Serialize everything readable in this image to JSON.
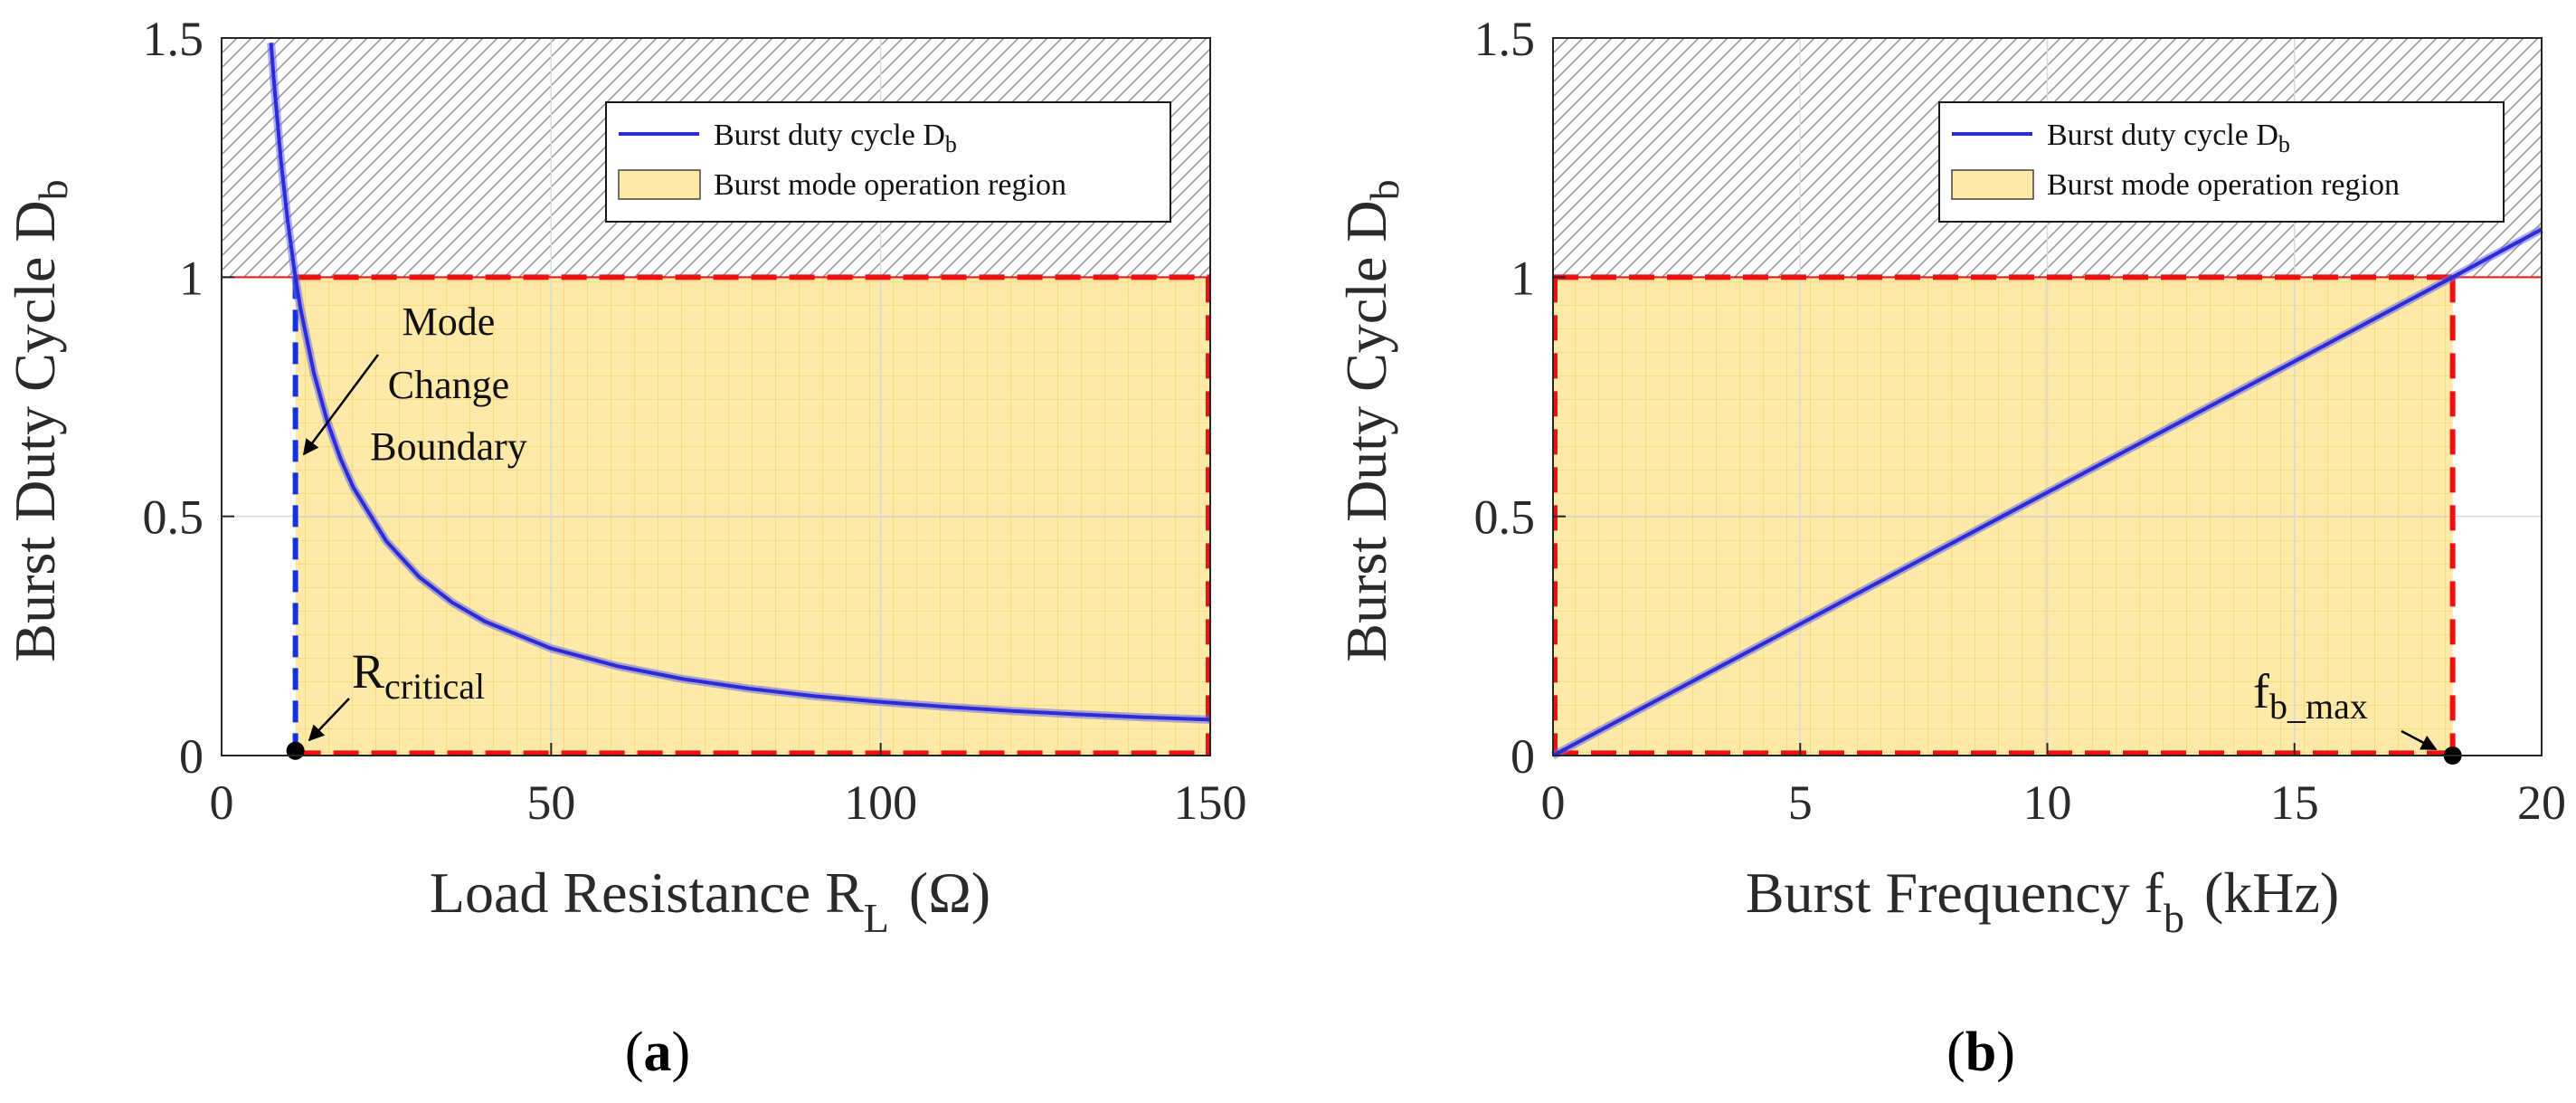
{
  "colors": {
    "curve": "#2b2bd9",
    "curve_glow": "#6a6ae6",
    "region_fill": "#fde9a8",
    "region_grid": "#f5d26b",
    "boundary_red": "#ee1111",
    "boundary_blue": "#1530e0",
    "hatch": "#9a9a9a"
  },
  "legend": {
    "line_label_main": "Burst duty cycle D",
    "line_label_sub": "b",
    "region_label": "Burst mode operation region"
  },
  "chart_data": [
    {
      "type": "line",
      "panel_label": "a",
      "title": "",
      "xlabel_main": "Load Resistance R",
      "xlabel_sub": "L",
      "xlabel_unit": "(Ω)",
      "ylabel_main": "Burst Duty Cycle D",
      "ylabel_sub": "b",
      "xlim": [
        0,
        150
      ],
      "ylim": [
        0,
        1.5
      ],
      "xticks": [
        0,
        50,
        100,
        150
      ],
      "xtick_labels": [
        "0",
        "50",
        "100",
        "150"
      ],
      "yticks": [
        0,
        0.5,
        1,
        1.5
      ],
      "ytick_labels": [
        "0",
        "0.5",
        "1",
        "1.5"
      ],
      "series": [
        {
          "name": "Burst duty cycle Db",
          "x": [
            7.5,
            8,
            9,
            10,
            11,
            11.2,
            12,
            14,
            16,
            18,
            20,
            25,
            30,
            35,
            40,
            50,
            60,
            70,
            80,
            90,
            100,
            110,
            120,
            130,
            140,
            150
          ],
          "y": [
            1.49,
            1.4,
            1.244,
            1.12,
            1.018,
            1.0,
            0.933,
            0.8,
            0.7,
            0.622,
            0.56,
            0.448,
            0.373,
            0.32,
            0.28,
            0.224,
            0.187,
            0.16,
            0.14,
            0.124,
            0.112,
            0.102,
            0.093,
            0.086,
            0.08,
            0.075
          ]
        }
      ],
      "region": {
        "name": "Burst mode operation region",
        "x": [
          11.2,
          150
        ],
        "y": [
          0,
          1
        ]
      },
      "hatched_region": {
        "x": [
          0,
          150
        ],
        "y": [
          1,
          1.5
        ]
      },
      "annotations": [
        {
          "text_lines": [
            "Mode",
            "Change",
            "Boundary"
          ],
          "points_to": [
            11.2,
            0.63
          ]
        },
        {
          "text_main": "R",
          "text_sub": "critical",
          "marker": [
            11.2,
            0.01
          ]
        }
      ]
    },
    {
      "type": "line",
      "panel_label": "b",
      "title": "",
      "xlabel_main": "Burst Frequency f",
      "xlabel_sub": "b",
      "xlabel_unit": "(kHz)",
      "ylabel_main": "Burst Duty Cycle D",
      "ylabel_sub": "b",
      "xlim": [
        0,
        20
      ],
      "ylim": [
        0,
        1.5
      ],
      "xticks": [
        0,
        5,
        10,
        15,
        20
      ],
      "xtick_labels": [
        "0",
        "5",
        "10",
        "15",
        "20"
      ],
      "yticks": [
        0,
        0.5,
        1,
        1.5
      ],
      "ytick_labels": [
        "0",
        "0.5",
        "1",
        "1.5"
      ],
      "series": [
        {
          "name": "Burst duty cycle Db",
          "x": [
            0,
            5,
            10,
            15,
            18.2,
            20
          ],
          "y": [
            0.0,
            0.275,
            0.55,
            0.824,
            1.0,
            1.1
          ]
        }
      ],
      "region": {
        "name": "Burst mode operation region",
        "x": [
          0,
          18.2
        ],
        "y": [
          0,
          1
        ]
      },
      "hatched_region": {
        "x": [
          0,
          20
        ],
        "y": [
          1,
          1.5
        ]
      },
      "annotations": [
        {
          "text_main": "f",
          "text_sub": "b_max",
          "marker": [
            18.2,
            0.0
          ]
        }
      ]
    }
  ]
}
